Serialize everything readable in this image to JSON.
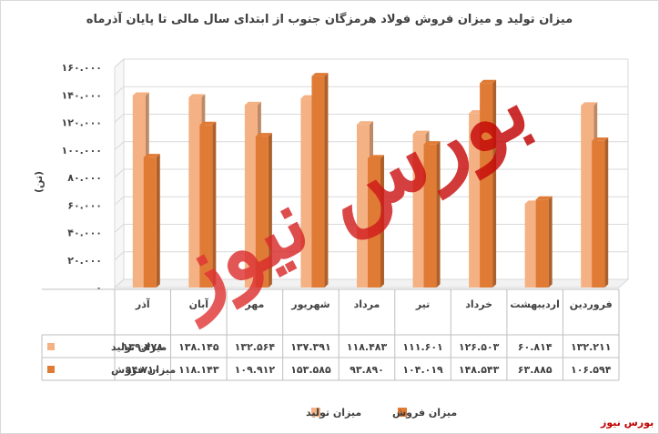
{
  "chart_data": {
    "type": "bar",
    "title": "میزان تولید و میزان فروش فولاد هرمزگان جنوب از ابتدای سال مالی تا پایان آذرماه",
    "ylabel": "(تن)",
    "ylim": [
      0,
      160000
    ],
    "yticks": [
      "۰",
      "۲۰.۰۰۰",
      "۴۰.۰۰۰",
      "۶۰.۰۰۰",
      "۸۰.۰۰۰",
      "۱۰۰.۰۰۰",
      "۱۲۰.۰۰۰",
      "۱۴۰.۰۰۰",
      "۱۶۰.۰۰۰"
    ],
    "categories": [
      "فروردین",
      "اردیبهشت",
      "خرداد",
      "تیر",
      "مرداد",
      "شهریور",
      "مهر",
      "آبان",
      "آذر"
    ],
    "series": [
      {
        "name": "میزان تولید",
        "color": "#f4b183",
        "values": [
          132211,
          60814,
          126503,
          111601,
          118483,
          137391,
          132564,
          138145,
          139478
        ],
        "labels": [
          "۱۳۲.۲۱۱",
          "۶۰.۸۱۴",
          "۱۲۶.۵۰۳",
          "۱۱۱.۶۰۱",
          "۱۱۸.۴۸۳",
          "۱۳۷.۳۹۱",
          "۱۳۲.۵۶۴",
          "۱۳۸.۱۴۵",
          "۱۳۹.۴۷۸"
        ]
      },
      {
        "name": "میزان فروش",
        "color": "#e07b36",
        "values": [
          106594,
          63885,
          148543,
          104019,
          93890,
          153585,
          109912,
          118143,
          94710
        ],
        "labels": [
          "۱۰۶.۵۹۴",
          "۶۳.۸۸۵",
          "۱۴۸.۵۴۳",
          "۱۰۴.۰۱۹",
          "۹۳.۸۹۰",
          "۱۵۳.۵۸۵",
          "۱۰۹.۹۱۲",
          "۱۱۸.۱۴۳",
          "۹۴.۷۱۰"
        ]
      }
    ],
    "grid": true,
    "legend_position": "bottom"
  },
  "watermark": "بورس نیوز",
  "brand": "بورس نیوز"
}
